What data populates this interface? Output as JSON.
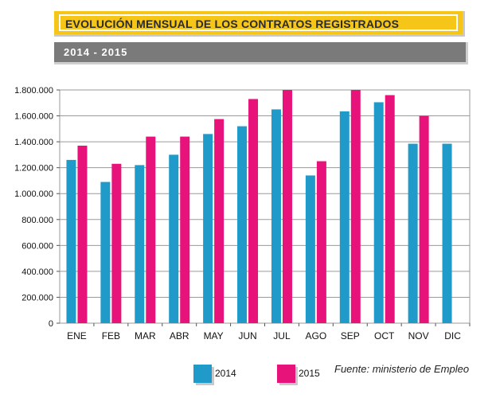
{
  "header": {
    "title": "EVOLUCIÓN MENSUAL DE LOS CONTRATOS REGISTRADOS",
    "subtitle": "2014 - 2015"
  },
  "source": "Fuente: ministerio de Empleo",
  "chart_data": {
    "type": "bar",
    "title": "EVOLUCIÓN MENSUAL DE LOS CONTRATOS REGISTRADOS",
    "subtitle": "2014 - 2015",
    "categories": [
      "ENE",
      "FEB",
      "MAR",
      "ABR",
      "MAY",
      "JUN",
      "JUL",
      "AGO",
      "SEP",
      "OCT",
      "NOV",
      "DIC"
    ],
    "series": [
      {
        "name": "2014",
        "color": "#1f9ac9",
        "values": [
          1260000,
          1090000,
          1220000,
          1300000,
          1460000,
          1520000,
          1650000,
          1140000,
          1635000,
          1705000,
          1385000,
          1385000
        ]
      },
      {
        "name": "2015",
        "color": "#e8137a",
        "values": [
          1370000,
          1230000,
          1440000,
          1440000,
          1575000,
          1730000,
          1800000,
          1250000,
          1800000,
          1760000,
          1600000,
          null
        ]
      }
    ],
    "ylim": [
      0,
      1800000
    ],
    "yticks": [
      0,
      200000,
      400000,
      600000,
      800000,
      1000000,
      1200000,
      1400000,
      1600000,
      1800000
    ],
    "ytick_labels": [
      "0",
      "200.000",
      "400.000",
      "600.000",
      "800.000",
      "1.000.000",
      "1.200.000",
      "1.400.000",
      "1.600.000",
      "1.800.000"
    ],
    "grid": true,
    "legend_position": "bottom"
  }
}
